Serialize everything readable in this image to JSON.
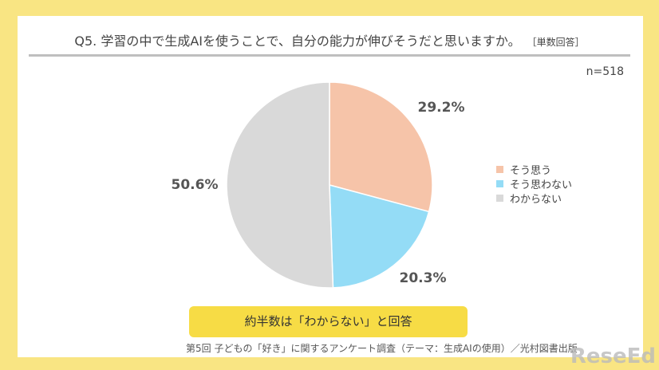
{
  "title": "Q5. 学習の中で生成AIを使うことで、自分の能力が伸びそうだと思いますか。",
  "title_note": "［単数回答］",
  "sample": "n=518",
  "chart_data": {
    "type": "pie",
    "start": "top",
    "direction": "clockwise",
    "categories": [
      "そう思う",
      "そう思わない",
      "わからない"
    ],
    "values": [
      29.2,
      20.3,
      50.6
    ],
    "labels": [
      "29.2%",
      "20.3%",
      "50.6%"
    ],
    "colors": [
      "#f6c4a9",
      "#94dcf6",
      "#d9d9d9"
    ],
    "legend": "right"
  },
  "callout": "約半数は「わからない」と回答",
  "source": "第5回 子どもの「好き」に関するアンケート調査（テーマ：生成AIの使用）／光村図書出版",
  "watermark": "ReseEd"
}
